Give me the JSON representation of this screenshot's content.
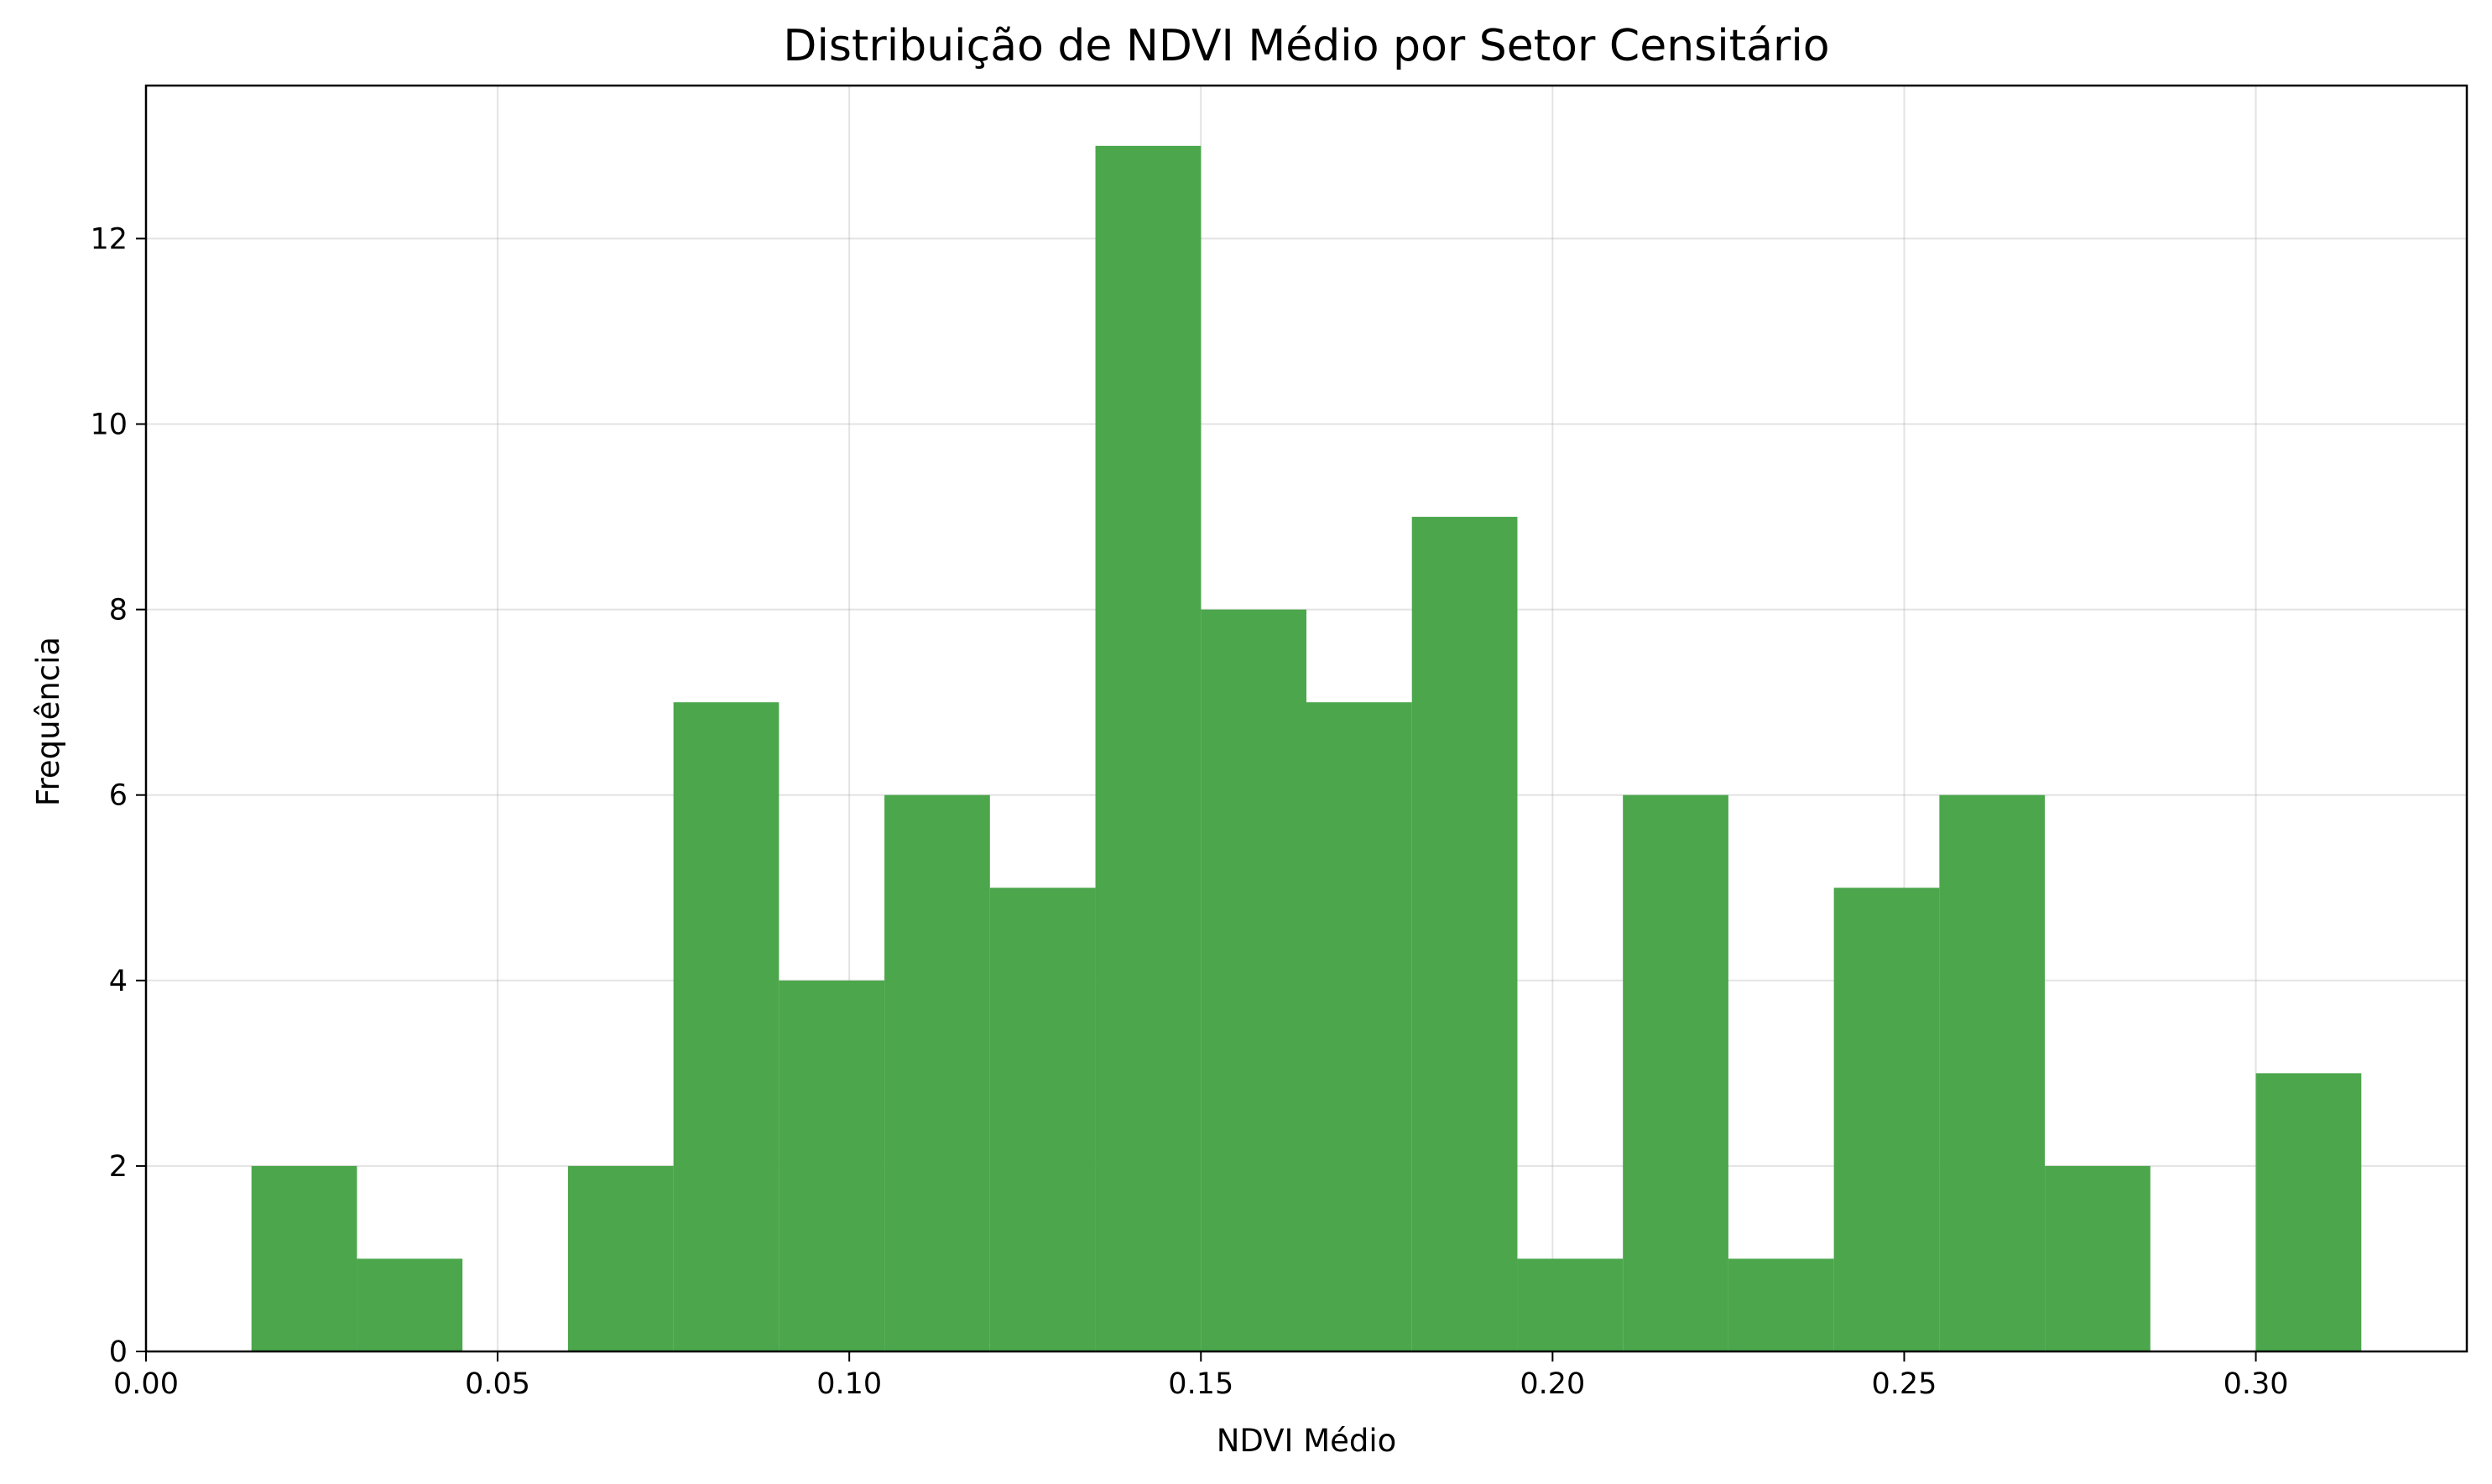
{
  "chart_data": {
    "type": "bar",
    "title": "Distribuição de NDVI Médio por Setor Censitário",
    "xlabel": "NDVI Médio",
    "ylabel": "Frequência",
    "xlim": [
      0.0,
      0.33
    ],
    "ylim": [
      0,
      13.65
    ],
    "xticks": [
      0.0,
      0.05,
      0.1,
      0.15,
      0.2,
      0.25,
      0.3
    ],
    "xtick_labels": [
      "0.00",
      "0.05",
      "0.10",
      "0.15",
      "0.20",
      "0.25",
      "0.30"
    ],
    "yticks": [
      0,
      2,
      4,
      6,
      8,
      10,
      12
    ],
    "ytick_labels": [
      "0",
      "2",
      "4",
      "6",
      "8",
      "10",
      "12"
    ],
    "grid": true,
    "color": "#4ca64c",
    "bins": [
      {
        "start": 0.015,
        "end": 0.03,
        "count": 2
      },
      {
        "start": 0.03,
        "end": 0.045,
        "count": 1
      },
      {
        "start": 0.045,
        "end": 0.06,
        "count": 0
      },
      {
        "start": 0.06,
        "end": 0.075,
        "count": 2
      },
      {
        "start": 0.075,
        "end": 0.09,
        "count": 7
      },
      {
        "start": 0.09,
        "end": 0.105,
        "count": 4
      },
      {
        "start": 0.105,
        "end": 0.12,
        "count": 6
      },
      {
        "start": 0.12,
        "end": 0.135,
        "count": 5
      },
      {
        "start": 0.135,
        "end": 0.15,
        "count": 13
      },
      {
        "start": 0.15,
        "end": 0.165,
        "count": 8
      },
      {
        "start": 0.165,
        "end": 0.18,
        "count": 7
      },
      {
        "start": 0.18,
        "end": 0.195,
        "count": 9
      },
      {
        "start": 0.195,
        "end": 0.21,
        "count": 1
      },
      {
        "start": 0.21,
        "end": 0.225,
        "count": 6
      },
      {
        "start": 0.225,
        "end": 0.24,
        "count": 1
      },
      {
        "start": 0.24,
        "end": 0.255,
        "count": 5
      },
      {
        "start": 0.255,
        "end": 0.27,
        "count": 6
      },
      {
        "start": 0.27,
        "end": 0.285,
        "count": 2
      },
      {
        "start": 0.285,
        "end": 0.3,
        "count": 0
      },
      {
        "start": 0.3,
        "end": 0.315,
        "count": 3
      }
    ]
  }
}
